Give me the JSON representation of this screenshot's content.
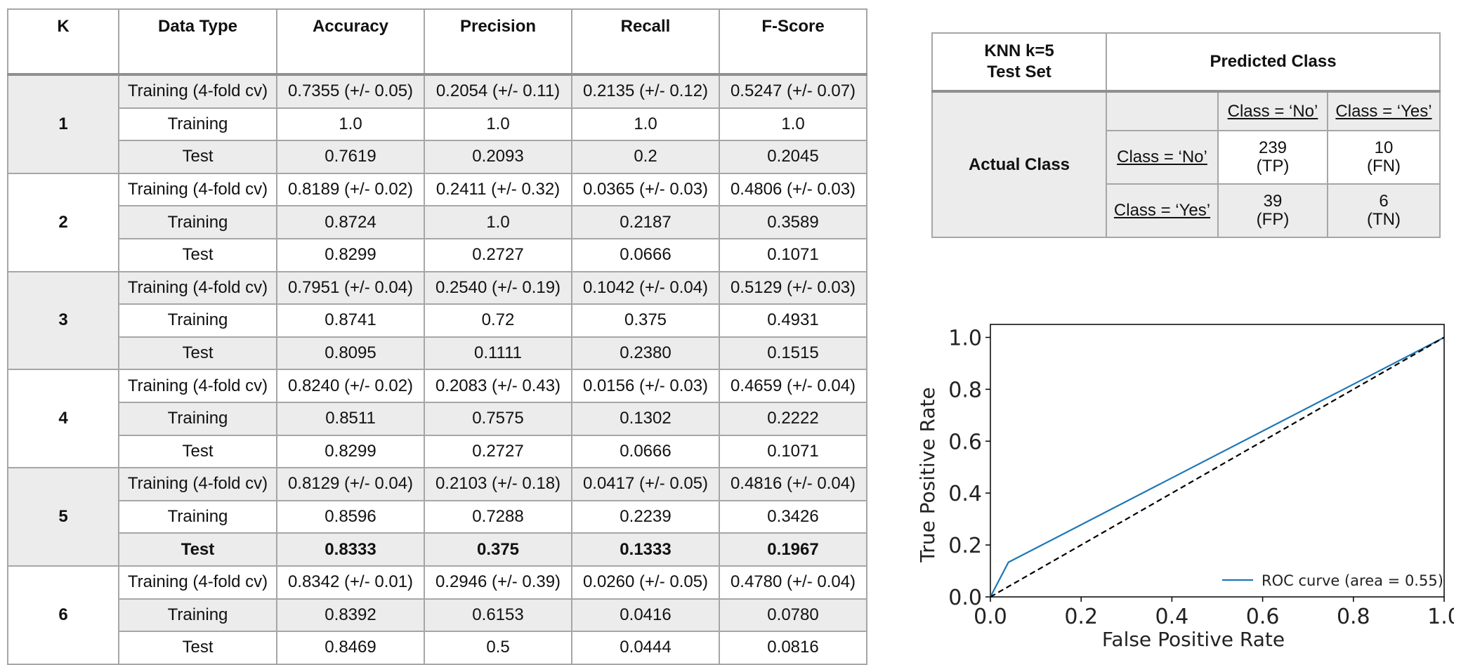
{
  "results_table": {
    "headers": [
      "K",
      "Data Type",
      "Accuracy",
      "Precision",
      "Recall",
      "F-Score"
    ],
    "groups": [
      {
        "k": "1",
        "rows": [
          [
            "Training (4-fold cv)",
            "0.7355 (+/- 0.05)",
            "0.2054 (+/- 0.11)",
            "0.2135 (+/- 0.12)",
            "0.5247 (+/- 0.07)"
          ],
          [
            "Training",
            "1.0",
            "1.0",
            "1.0",
            "1.0"
          ],
          [
            "Test",
            "0.7619",
            "0.2093",
            "0.2",
            "0.2045"
          ]
        ]
      },
      {
        "k": "2",
        "rows": [
          [
            "Training (4-fold cv)",
            "0.8189 (+/- 0.02)",
            "0.2411 (+/- 0.32)",
            "0.0365 (+/- 0.03)",
            "0.4806 (+/- 0.03)"
          ],
          [
            "Training",
            "0.8724",
            "1.0",
            "0.2187",
            "0.3589"
          ],
          [
            "Test",
            "0.8299",
            "0.2727",
            "0.0666",
            "0.1071"
          ]
        ]
      },
      {
        "k": "3",
        "rows": [
          [
            "Training (4-fold cv)",
            "0.7951 (+/- 0.04)",
            "0.2540 (+/- 0.19)",
            "0.1042 (+/- 0.04)",
            "0.5129  (+/- 0.03)"
          ],
          [
            "Training",
            "0.8741",
            "0.72",
            "0.375",
            "0.4931"
          ],
          [
            "Test",
            "0.8095",
            "0.1111",
            "0.2380",
            "0.1515"
          ]
        ]
      },
      {
        "k": "4",
        "rows": [
          [
            "Training (4-fold cv)",
            "0.8240 (+/- 0.02)",
            "0.2083 (+/- 0.43)",
            "0.0156 (+/- 0.03)",
            "0.4659 (+/- 0.04)"
          ],
          [
            "Training",
            "0.8511",
            "0.7575",
            "0.1302",
            "0.2222"
          ],
          [
            "Test",
            "0.8299",
            "0.2727",
            "0.0666",
            "0.1071"
          ]
        ]
      },
      {
        "k": "5",
        "rows": [
          [
            "Training (4-fold cv)",
            "0.8129 (+/- 0.04)",
            "0.2103 (+/- 0.18)",
            "0.0417 (+/- 0.05)",
            "0.4816 (+/- 0.04)"
          ],
          [
            "Training",
            "0.8596",
            "0.7288",
            "0.2239",
            "0.3426"
          ],
          [
            "Test",
            "0.8333",
            "0.375",
            "0.1333",
            "0.1967"
          ]
        ],
        "bold_row": 2
      },
      {
        "k": "6",
        "rows": [
          [
            "Training (4-fold cv)",
            "0.8342 (+/- 0.01)",
            "0.2946 (+/- 0.39)",
            "0.0260 (+/- 0.05)",
            "0.4780 (+/- 0.04)"
          ],
          [
            "Training",
            "0.8392",
            "0.6153",
            "0.0416",
            "0.0780"
          ],
          [
            "Test",
            "0.8469",
            "0.5",
            "0.0444",
            "0.0816"
          ]
        ]
      }
    ]
  },
  "confusion_matrix": {
    "title_line1": "KNN k=5",
    "title_line2": "Test Set",
    "predicted_header": "Predicted Class",
    "actual_header": "Actual Class",
    "col_labels": [
      "Class = ‘No’",
      "Class = ‘Yes’"
    ],
    "row_labels": [
      "Class = ‘No’",
      "Class = ‘Yes’"
    ],
    "cells": [
      [
        {
          "value": "239",
          "tag": "(TP)"
        },
        {
          "value": "10",
          "tag": "(FN)"
        }
      ],
      [
        {
          "value": "39",
          "tag": "(FP)"
        },
        {
          "value": "6",
          "tag": "(TN)"
        }
      ]
    ]
  },
  "chart_data": {
    "type": "line",
    "title": "",
    "xlabel": "False Positive Rate",
    "ylabel": "True Positive Rate",
    "xlim": [
      0.0,
      1.0
    ],
    "ylim": [
      0.0,
      1.05
    ],
    "xticks": [
      "0.0",
      "0.2",
      "0.4",
      "0.6",
      "0.8",
      "1.0"
    ],
    "yticks": [
      "0.0",
      "0.2",
      "0.4",
      "0.6",
      "0.8",
      "1.0"
    ],
    "legend_position": "lower-right",
    "series": [
      {
        "name": "ROC curve (area = 0.55)",
        "x": [
          0.0,
          0.0397,
          1.0
        ],
        "y": [
          0.0,
          0.1333,
          1.0
        ],
        "color": "#1f77b4",
        "style": "solid"
      },
      {
        "x": [
          0.0,
          1.0
        ],
        "y": [
          0.0,
          1.0
        ],
        "color": "#000000",
        "style": "dashed"
      }
    ]
  }
}
